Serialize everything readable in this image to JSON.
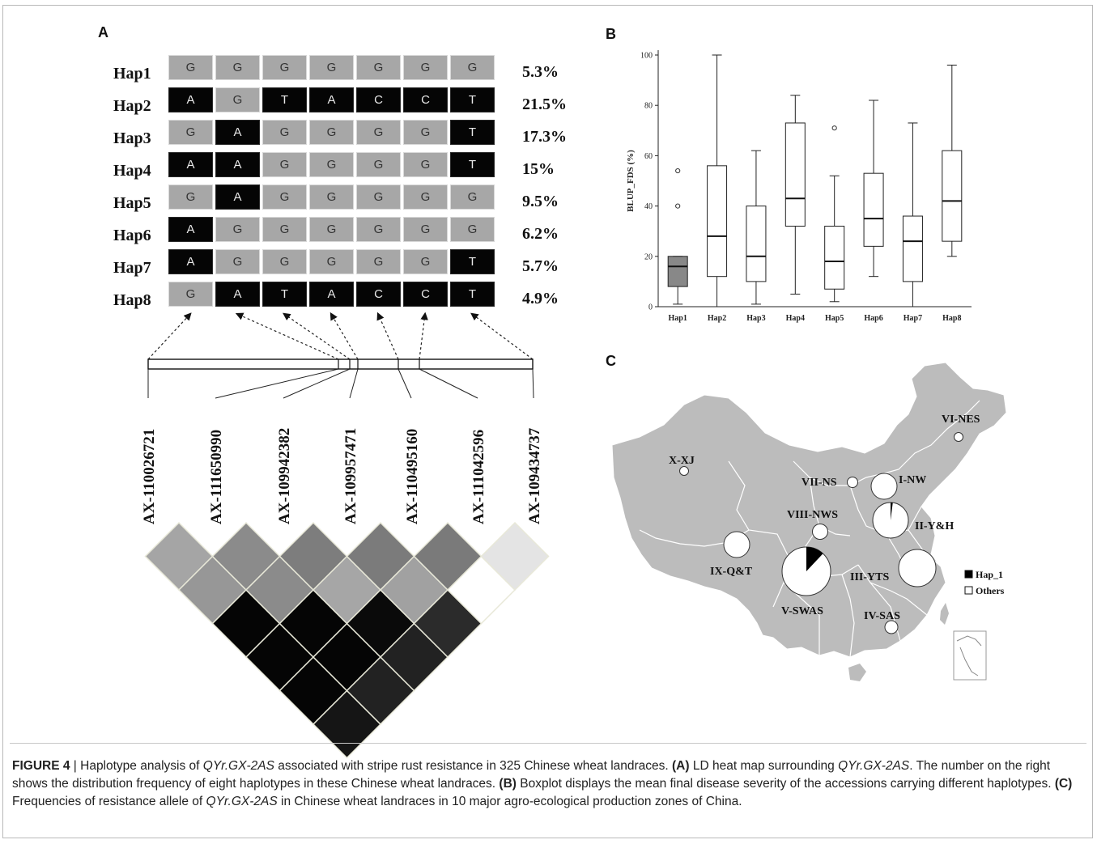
{
  "panel_labels": {
    "a": "A",
    "b": "B",
    "c": "C"
  },
  "haplotypes": [
    {
      "name": "Hap1",
      "alleles": [
        "G",
        "G",
        "G",
        "G",
        "G",
        "G",
        "G"
      ],
      "types": [
        0,
        0,
        0,
        0,
        0,
        0,
        0
      ],
      "freq": "5.3%"
    },
    {
      "name": "Hap2",
      "alleles": [
        "A",
        "G",
        "T",
        "A",
        "C",
        "C",
        "T"
      ],
      "types": [
        1,
        0,
        1,
        1,
        1,
        1,
        1
      ],
      "freq": "21.5%"
    },
    {
      "name": "Hap3",
      "alleles": [
        "G",
        "A",
        "G",
        "G",
        "G",
        "G",
        "T"
      ],
      "types": [
        0,
        1,
        0,
        0,
        0,
        0,
        1
      ],
      "freq": "17.3%"
    },
    {
      "name": "Hap4",
      "alleles": [
        "A",
        "A",
        "G",
        "G",
        "G",
        "G",
        "T"
      ],
      "types": [
        1,
        1,
        0,
        0,
        0,
        0,
        1
      ],
      "freq": "15%"
    },
    {
      "name": "Hap5",
      "alleles": [
        "G",
        "A",
        "G",
        "G",
        "G",
        "G",
        "G"
      ],
      "types": [
        0,
        1,
        0,
        0,
        0,
        0,
        0
      ],
      "freq": "9.5%"
    },
    {
      "name": "Hap6",
      "alleles": [
        "A",
        "G",
        "G",
        "G",
        "G",
        "G",
        "G"
      ],
      "types": [
        1,
        0,
        0,
        0,
        0,
        0,
        0
      ],
      "freq": "6.2%"
    },
    {
      "name": "Hap7",
      "alleles": [
        "A",
        "G",
        "G",
        "G",
        "G",
        "G",
        "T"
      ],
      "types": [
        1,
        0,
        0,
        0,
        0,
        0,
        1
      ],
      "freq": "5.7%"
    },
    {
      "name": "Hap8",
      "alleles": [
        "G",
        "A",
        "T",
        "A",
        "C",
        "C",
        "T"
      ],
      "types": [
        0,
        1,
        1,
        1,
        1,
        1,
        1
      ],
      "freq": "4.9%"
    }
  ],
  "markers": [
    "AX-110026721",
    "AX-111650990",
    "AX-109942382",
    "AX-109957471",
    "AX-110495160",
    "AX-111042596",
    "AX-109434737"
  ],
  "ld_colors": [
    [
      "#a5a5a5",
      "#979797",
      "#050505",
      "#050505",
      "#050505",
      "#151515"
    ],
    [
      "#8b8b8b",
      "#8b8b8b",
      "#050505",
      "#050505",
      "#222222"
    ],
    [
      "#7d7d7d",
      "#a6a6a6",
      "#0a0a0a",
      "#222222"
    ],
    [
      "#7b7b7b",
      "#a1a1a1",
      "#2b2b2b"
    ],
    [
      "#7a7a7a",
      "#ffffff"
    ],
    [
      "#e4e4e4"
    ]
  ],
  "chart_data": {
    "type": "boxplot",
    "ylabel": "BLUP_FDS (%)",
    "ylim": [
      0,
      100
    ],
    "yticks": [
      0,
      20,
      40,
      60,
      80,
      100
    ],
    "categories": [
      "Hap1",
      "Hap2",
      "Hap3",
      "Hap4",
      "Hap5",
      "Hap6",
      "Hap7",
      "Hap8"
    ],
    "boxes": [
      {
        "min": 1,
        "q1": 8,
        "median": 16,
        "q3": 20,
        "max": 20,
        "outliers": [
          40,
          54
        ],
        "fill": "#888888"
      },
      {
        "min": 0,
        "q1": 12,
        "median": 28,
        "q3": 56,
        "max": 100,
        "outliers": [],
        "fill": "#ffffff"
      },
      {
        "min": 1,
        "q1": 10,
        "median": 20,
        "q3": 40,
        "max": 62,
        "outliers": [],
        "fill": "#ffffff"
      },
      {
        "min": 5,
        "q1": 32,
        "median": 43,
        "q3": 73,
        "max": 84,
        "outliers": [],
        "fill": "#ffffff"
      },
      {
        "min": 2,
        "q1": 7,
        "median": 18,
        "q3": 32,
        "max": 52,
        "outliers": [
          71
        ],
        "fill": "#ffffff"
      },
      {
        "min": 12,
        "q1": 24,
        "median": 35,
        "q3": 53,
        "max": 82,
        "outliers": [],
        "fill": "#ffffff"
      },
      {
        "min": 0,
        "q1": 10,
        "median": 26,
        "q3": 36,
        "max": 73,
        "outliers": [],
        "fill": "#ffffff"
      },
      {
        "min": 20,
        "q1": 26,
        "median": 42,
        "q3": 62,
        "max": 96,
        "outliers": [],
        "fill": "#ffffff"
      }
    ]
  },
  "map": {
    "zones": [
      {
        "label": "VI-NES",
        "hap1_fraction": 0
      },
      {
        "label": "X-XJ",
        "hap1_fraction": 0
      },
      {
        "label": "VII-NS",
        "hap1_fraction": 0
      },
      {
        "label": "I-NW",
        "hap1_fraction": 0
      },
      {
        "label": "VIII-NWS",
        "hap1_fraction": 0
      },
      {
        "label": "II-Y&H",
        "hap1_fraction": 0.02
      },
      {
        "label": "IX-Q&T",
        "hap1_fraction": 0
      },
      {
        "label": "III-YTS",
        "hap1_fraction": 0
      },
      {
        "label": "V-SWAS",
        "hap1_fraction": 0.12
      },
      {
        "label": "IV-SAS",
        "hap1_fraction": 0
      }
    ],
    "legend": [
      {
        "label": "Hap_1",
        "color": "#000000"
      },
      {
        "label": "Others",
        "color": "#ffffff"
      }
    ],
    "land_color": "#bdbdbd",
    "border_color": "#ffffff"
  },
  "caption": {
    "lead": "FIGURE 4",
    "sep": " | ",
    "t1": " Haplotype analysis of ",
    "gene1": "QYr.GX-2AS",
    "t2": " associated with stripe rust resistance in 325 Chinese wheat landraces. ",
    "a": "(A)",
    "t3": " LD heat map surrounding ",
    "gene2": "QYr.GX-2AS",
    "t4": ". The number on the right shows the distribution frequency of eight haplotypes in these Chinese wheat landraces. ",
    "b": "(B)",
    "t5": " Boxplot displays the mean final disease severity of the accessions carrying different haplotypes. ",
    "c": "(C)",
    "t6": " Frequencies of resistance allele of ",
    "gene3": "QYr.GX-2AS",
    "t7": " in Chinese wheat landraces in 10 major agro-ecological production zones of China."
  }
}
